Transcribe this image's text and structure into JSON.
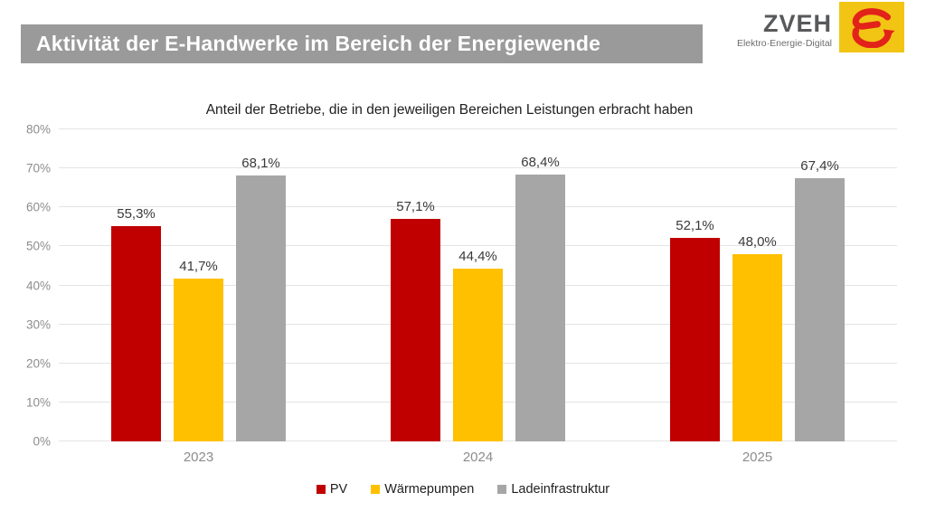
{
  "header": {
    "title": "Aktivität der E-Handwerke im Bereich der Energiewende",
    "bg_color": "#9A9A9A"
  },
  "logo": {
    "wordmark": "ZVEH",
    "tagline": "Elektro·Energie·Digital",
    "mark_bg": "#F2C514",
    "mark_color": "#E2231A"
  },
  "chart_data": {
    "type": "bar",
    "title": "Anteil der Betriebe, die in den jeweiligen Bereichen Leistungen erbracht haben",
    "categories": [
      "2023",
      "2024",
      "2025"
    ],
    "series": [
      {
        "name": "PV",
        "color": "#C00000",
        "values": [
          55.3,
          57.1,
          52.1
        ],
        "labels": [
          "55,3%",
          "57,1%",
          "52,1%"
        ]
      },
      {
        "name": "Wärmepumpen",
        "color": "#FFC000",
        "values": [
          41.7,
          44.4,
          48.0
        ],
        "labels": [
          "41,7%",
          "44,4%",
          "48,0%"
        ]
      },
      {
        "name": "Ladeinfrastruktur",
        "color": "#A6A6A6",
        "values": [
          68.1,
          68.4,
          67.4
        ],
        "labels": [
          "68,1%",
          "68,4%",
          "67,4%"
        ]
      }
    ],
    "xlabel": "",
    "ylabel": "",
    "ylim": [
      0,
      80
    ],
    "ytick_values": [
      0,
      10,
      20,
      30,
      40,
      50,
      60,
      70,
      80
    ],
    "ytick_labels": [
      "0%",
      "10%",
      "20%",
      "30%",
      "40%",
      "50%",
      "60%",
      "70%",
      "80%"
    ],
    "grid": "horizontal",
    "legend_position": "bottom-center",
    "gridline_color": "#E4E4E4",
    "axis_text_color": "#8C8C8C",
    "label_text_color": "#3A3A3A"
  }
}
